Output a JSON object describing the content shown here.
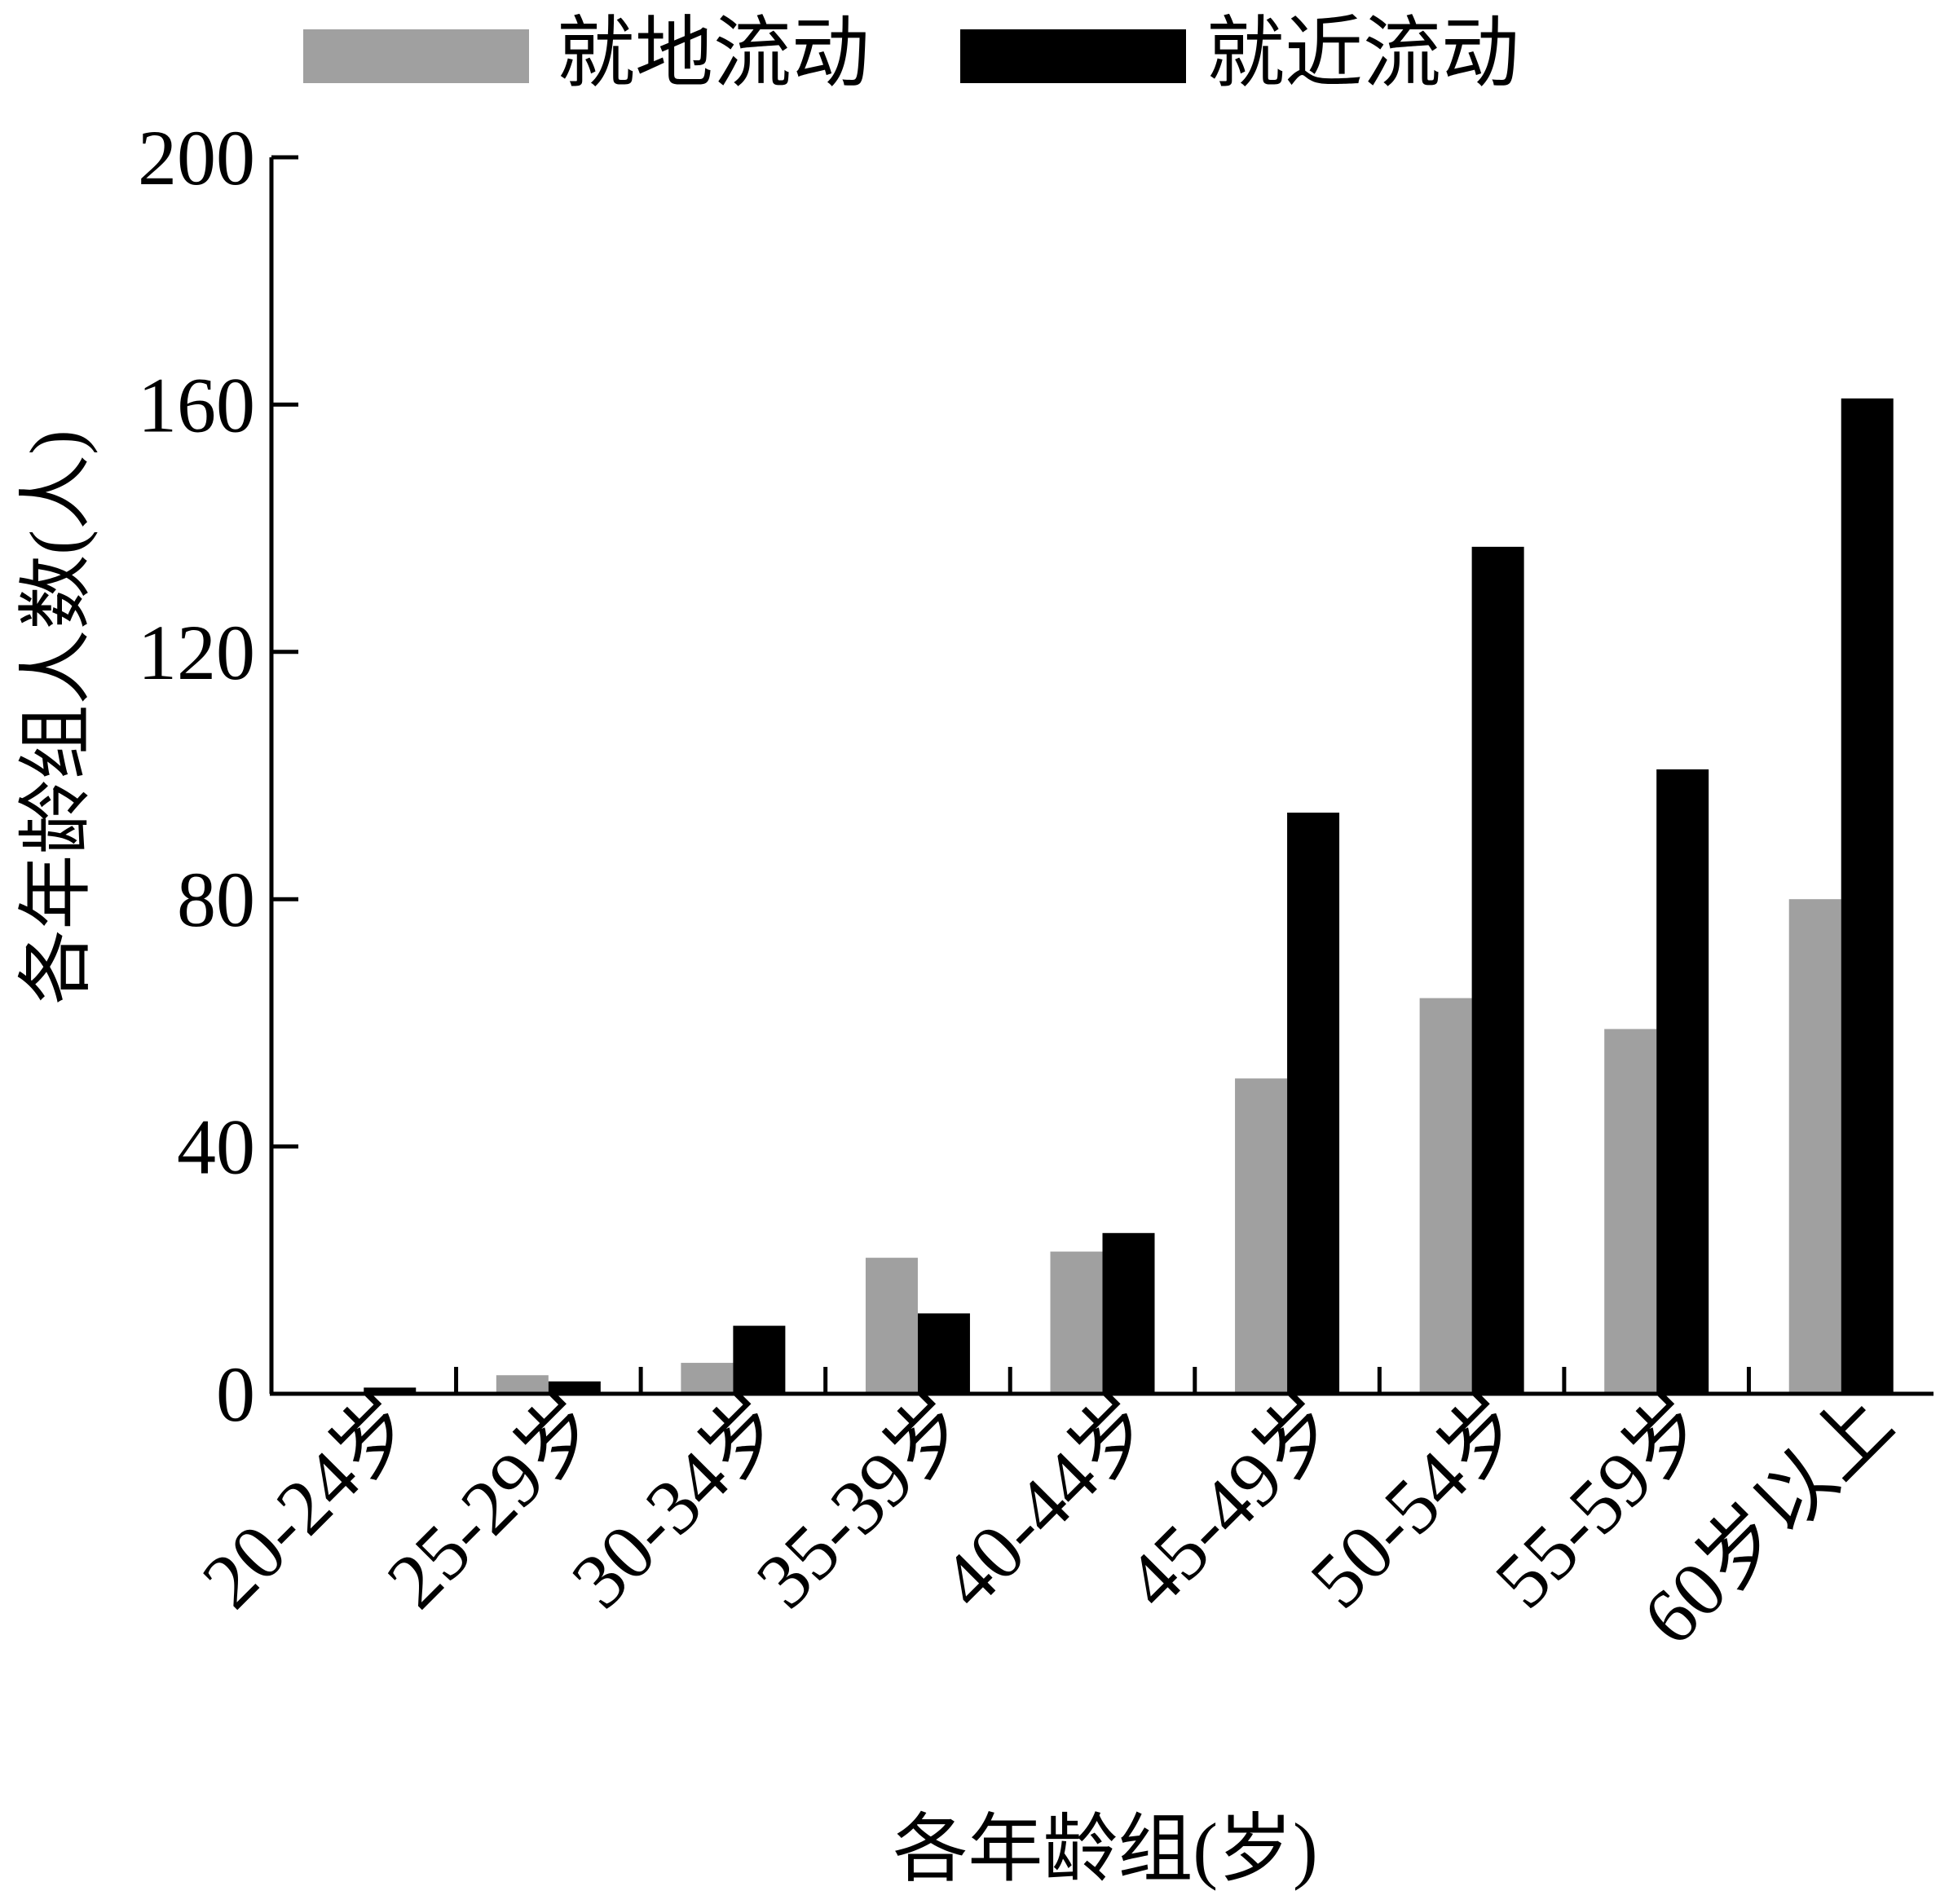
{
  "chart_data": {
    "type": "bar",
    "xlabel": "各年龄组(岁)",
    "ylabel": "各年龄组人数(人)",
    "ylim": [
      0,
      200
    ],
    "yticks": [
      0,
      40,
      80,
      120,
      160,
      200
    ],
    "legend_position": "top",
    "grid": false,
    "categories": [
      "20-24岁",
      "25-29岁",
      "30-34岁",
      "35-39岁",
      "40-44岁",
      "45-49岁",
      "50-54岁",
      "55-59岁",
      "60岁以上"
    ],
    "series": [
      {
        "name": "就地流动",
        "color": "#a0a0a0",
        "values": [
          0,
          3,
          5,
          22,
          23,
          51,
          64,
          59,
          80
        ]
      },
      {
        "name": "就近流动",
        "color": "#000000",
        "values": [
          1,
          2,
          11,
          13,
          26,
          94,
          137,
          101,
          161
        ]
      }
    ]
  }
}
